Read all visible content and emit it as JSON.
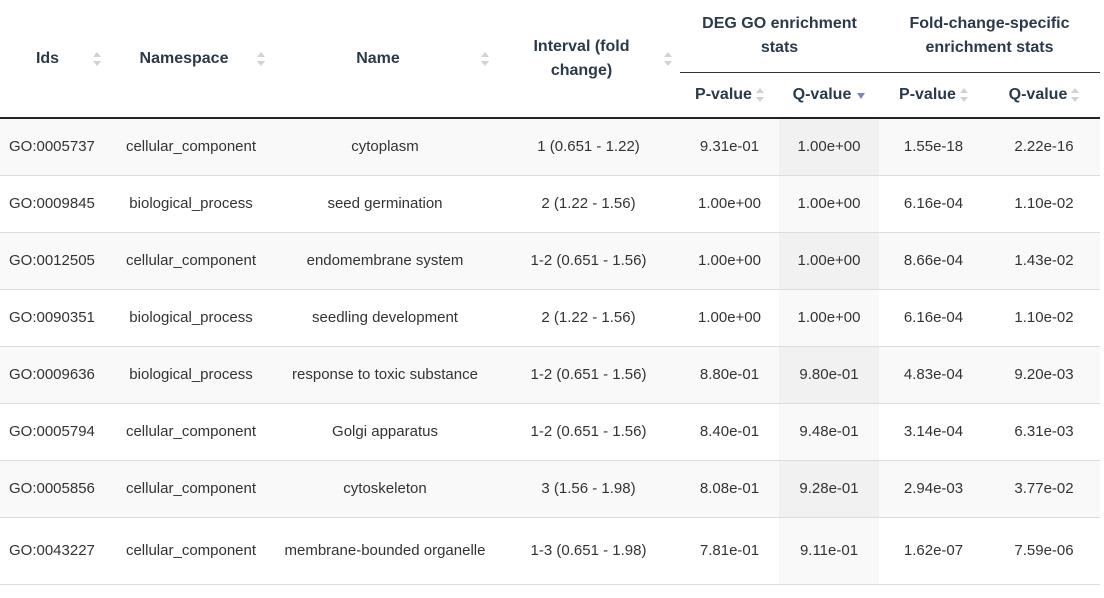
{
  "headers": {
    "ids": "Ids",
    "namespace": "Namespace",
    "name": "Name",
    "interval": "Interval (fold change)",
    "deg_group": "DEG GO enrichment stats",
    "fc_group": "Fold-change-specific enrichment stats",
    "deg_pvalue": "P-value",
    "deg_qvalue": "Q-value",
    "fc_pvalue": "P-value",
    "fc_qvalue": "Q-value"
  },
  "sort": {
    "column": "deg_qvalue",
    "direction": "descending"
  },
  "rows": [
    {
      "id": "GO:0005737",
      "namespace": "cellular_component",
      "name": "cytoplasm",
      "interval": "1 (0.651 - 1.22)",
      "deg_p": "9.31e-01",
      "deg_q": "1.00e+00",
      "fc_p": "1.55e-18",
      "fc_q": "2.22e-16"
    },
    {
      "id": "GO:0009845",
      "namespace": "biological_process",
      "name": "seed germination",
      "interval": "2 (1.22 - 1.56)",
      "deg_p": "1.00e+00",
      "deg_q": "1.00e+00",
      "fc_p": "6.16e-04",
      "fc_q": "1.10e-02"
    },
    {
      "id": "GO:0012505",
      "namespace": "cellular_component",
      "name": "endomembrane system",
      "interval": "1-2 (0.651 - 1.56)",
      "deg_p": "1.00e+00",
      "deg_q": "1.00e+00",
      "fc_p": "8.66e-04",
      "fc_q": "1.43e-02"
    },
    {
      "id": "GO:0090351",
      "namespace": "biological_process",
      "name": "seedling development",
      "interval": "2 (1.22 - 1.56)",
      "deg_p": "1.00e+00",
      "deg_q": "1.00e+00",
      "fc_p": "6.16e-04",
      "fc_q": "1.10e-02"
    },
    {
      "id": "GO:0009636",
      "namespace": "biological_process",
      "name": "response to toxic substance",
      "interval": "1-2 (0.651 - 1.56)",
      "deg_p": "8.80e-01",
      "deg_q": "9.80e-01",
      "fc_p": "4.83e-04",
      "fc_q": "9.20e-03"
    },
    {
      "id": "GO:0005794",
      "namespace": "cellular_component",
      "name": "Golgi apparatus",
      "interval": "1-2 (0.651 - 1.56)",
      "deg_p": "8.40e-01",
      "deg_q": "9.48e-01",
      "fc_p": "3.14e-04",
      "fc_q": "6.31e-03"
    },
    {
      "id": "GO:0005856",
      "namespace": "cellular_component",
      "name": "cytoskeleton",
      "interval": "3 (1.56 - 1.98)",
      "deg_p": "8.08e-01",
      "deg_q": "9.28e-01",
      "fc_p": "2.94e-03",
      "fc_q": "3.77e-02"
    },
    {
      "id": "GO:0043227",
      "namespace": "cellular_component",
      "name": "membrane-bounded organelle",
      "interval": "1-3 (0.651 - 1.98)",
      "deg_p": "7.81e-01",
      "deg_q": "9.11e-01",
      "fc_p": "1.62e-07",
      "fc_q": "7.59e-06"
    }
  ]
}
